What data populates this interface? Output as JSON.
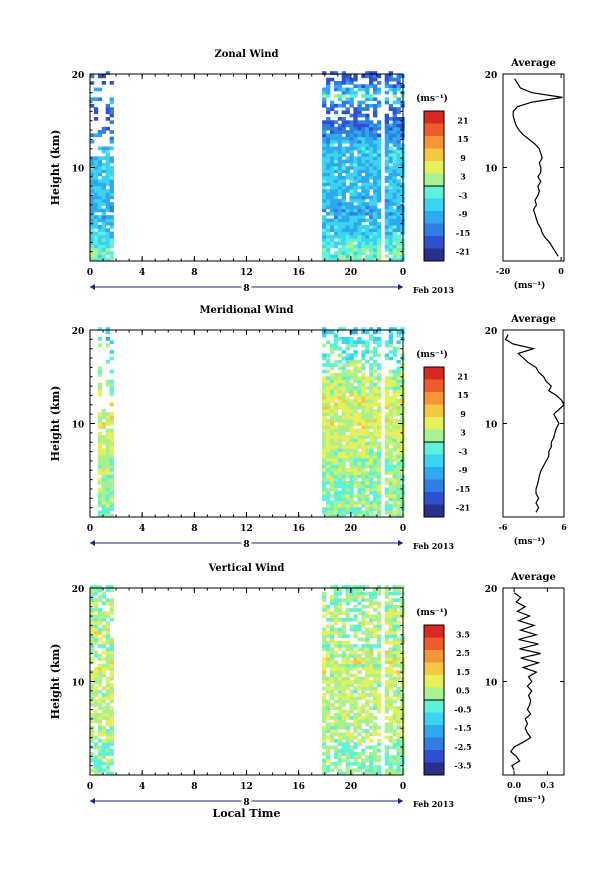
{
  "chart_data": [
    {
      "type": "heatmap",
      "title": "Zonal Wind",
      "ylabel": "Height (km)",
      "yticks": [
        10,
        20
      ],
      "ylim": [
        0,
        20
      ],
      "xticks": [
        "0",
        "4",
        "8",
        "12",
        "16",
        "20",
        "0"
      ],
      "xlim": [
        0,
        24
      ],
      "date_label": "8",
      "date_suffix": "Feb 2013",
      "colorbar": {
        "unit": "(ms⁻¹)",
        "ticks": [
          "21",
          "15",
          "9",
          "3",
          "-3",
          "-9",
          "-15",
          "-21"
        ],
        "range": [
          -24,
          24
        ],
        "colors": [
          "#2a2f8a",
          "#2f4fd0",
          "#2f7ee0",
          "#30a8ee",
          "#3ad4f2",
          "#5ff0d8",
          "#a8f090",
          "#e6f05a",
          "#f4c842",
          "#f49638",
          "#ef5a2e",
          "#d82a22"
        ]
      },
      "data_windows": [
        [
          0,
          1.8
        ],
        [
          17.8,
          24
        ]
      ],
      "gap_column": 22.3,
      "average_profile": {
        "title": "Average",
        "xlabel": "(ms⁻¹)",
        "xticks": [
          "-20",
          "0"
        ],
        "xlim": [
          -20,
          1
        ],
        "yticks": [
          10,
          20
        ],
        "heights": [
          0.5,
          1,
          1.5,
          2,
          2.5,
          3,
          3.5,
          4,
          4.5,
          5,
          5.5,
          6,
          6.5,
          7,
          7.5,
          8,
          8.5,
          9,
          9.5,
          10,
          10.5,
          11,
          11.5,
          12,
          12.5,
          13,
          13.5,
          14,
          14.5,
          15,
          15.5,
          16,
          16.5,
          17,
          17.5,
          18,
          18.5,
          19,
          19.5
        ],
        "values": [
          -1,
          -2,
          -3,
          -4,
          -5.5,
          -6.5,
          -7,
          -8,
          -8.5,
          -9,
          -9.5,
          -8.5,
          -9,
          -8,
          -7.5,
          -8,
          -7,
          -8,
          -7,
          -7,
          -7.5,
          -6.5,
          -7,
          -7.5,
          -9,
          -11,
          -13,
          -14.5,
          -15.5,
          -16,
          -16.5,
          -16.5,
          -15,
          -10,
          0.5,
          -10,
          -14,
          -15,
          -16
        ]
      }
    },
    {
      "type": "heatmap",
      "title": "Meridional Wind",
      "ylabel": "Height (km)",
      "yticks": [
        10,
        20
      ],
      "ylim": [
        0,
        20
      ],
      "xticks": [
        "0",
        "4",
        "8",
        "12",
        "16",
        "20",
        "0"
      ],
      "xlim": [
        0,
        24
      ],
      "date_label": "8",
      "date_suffix": "Feb 2013",
      "colorbar": {
        "unit": "(ms⁻¹)",
        "ticks": [
          "21",
          "15",
          "9",
          "3",
          "-3",
          "-9",
          "-15",
          "-21"
        ],
        "range": [
          -24,
          24
        ],
        "colors": [
          "#2a2f8a",
          "#2f4fd0",
          "#2f7ee0",
          "#30a8ee",
          "#3ad4f2",
          "#5ff0d8",
          "#a8f090",
          "#e6f05a",
          "#f4c842",
          "#f49638",
          "#ef5a2e",
          "#d82a22"
        ]
      },
      "data_windows": [
        [
          0.6,
          1.6
        ],
        [
          17.8,
          24
        ]
      ],
      "gap_column": 22.3,
      "average_profile": {
        "title": "Average",
        "xlabel": "(ms⁻¹)",
        "xticks": [
          "-6",
          "6"
        ],
        "xlim": [
          -6,
          6
        ],
        "yticks": [
          10,
          20
        ],
        "heights": [
          0.5,
          1,
          1.5,
          2,
          2.5,
          3,
          3.5,
          4,
          4.5,
          5,
          5.5,
          6,
          6.5,
          7,
          7.5,
          8,
          8.5,
          9,
          9.5,
          10,
          10.5,
          11,
          11.5,
          12,
          12.5,
          13,
          13.5,
          14,
          14.5,
          15,
          15.5,
          16,
          16.5,
          17,
          17.5,
          18,
          18.5,
          19,
          19.5
        ],
        "values": [
          0.5,
          1,
          0.5,
          1,
          0.5,
          0.5,
          0.8,
          1,
          1.2,
          1.5,
          2,
          2.5,
          3,
          3,
          3.5,
          3.5,
          4,
          4.2,
          4.5,
          5,
          4.5,
          4,
          5,
          6,
          5.5,
          4.5,
          3,
          3.5,
          2.5,
          2,
          1,
          0.5,
          -1,
          -2,
          -3,
          0,
          -4,
          -5.5,
          -5
        ]
      }
    },
    {
      "type": "heatmap",
      "title": "Vertical Wind",
      "ylabel": "Height (km)",
      "yticks": [
        10,
        20
      ],
      "ylim": [
        0,
        20
      ],
      "xticks": [
        "0",
        "4",
        "8",
        "12",
        "16",
        "20",
        "0"
      ],
      "xlim": [
        0,
        24
      ],
      "date_label": "8",
      "date_suffix": "Feb 2013",
      "xlabel": "Local Time",
      "colorbar": {
        "unit": "(ms⁻¹)",
        "ticks": [
          "3.5",
          "2.5",
          "1.5",
          "0.5",
          "-0.5",
          "-1.5",
          "-2.5",
          "-3.5"
        ],
        "range": [
          -4,
          4
        ],
        "colors": [
          "#2a2f8a",
          "#2f4fd0",
          "#2f7ee0",
          "#30a8ee",
          "#3ad4f2",
          "#5ff0d8",
          "#a8f090",
          "#e6f05a",
          "#f4c842",
          "#f49638",
          "#ef5a2e",
          "#d82a22"
        ]
      },
      "data_windows": [
        [
          0,
          1.8
        ],
        [
          17.8,
          24
        ]
      ],
      "gap_column": 22.3,
      "average_profile": {
        "title": "Average",
        "xlabel": "(ms⁻¹)",
        "xticks": [
          "0.0",
          "0.3"
        ],
        "xlim": [
          -0.1,
          0.45
        ],
        "yticks": [
          10,
          20
        ],
        "heights": [
          0.5,
          1,
          1.5,
          2,
          2.5,
          3,
          3.5,
          4,
          4.5,
          5,
          5.5,
          6,
          6.5,
          7,
          7.5,
          8,
          8.5,
          9,
          9.5,
          10,
          10.5,
          11,
          11.5,
          12,
          12.5,
          13,
          13.5,
          14,
          14.5,
          15,
          15.5,
          16,
          16.5,
          17,
          17.5,
          18,
          18.5,
          19,
          19.5
        ],
        "values": [
          0.0,
          -0.02,
          0.05,
          0.02,
          -0.03,
          0.0,
          0.08,
          0.15,
          0.12,
          0.1,
          0.12,
          0.1,
          0.15,
          0.12,
          0.14,
          0.15,
          0.13,
          0.16,
          0.12,
          0.16,
          0.13,
          0.2,
          0.08,
          0.22,
          0.06,
          0.24,
          0.05,
          0.22,
          0.04,
          0.2,
          0.06,
          0.18,
          0.04,
          0.14,
          0.03,
          0.1,
          0.02,
          0.06,
          0.0
        ]
      }
    }
  ]
}
